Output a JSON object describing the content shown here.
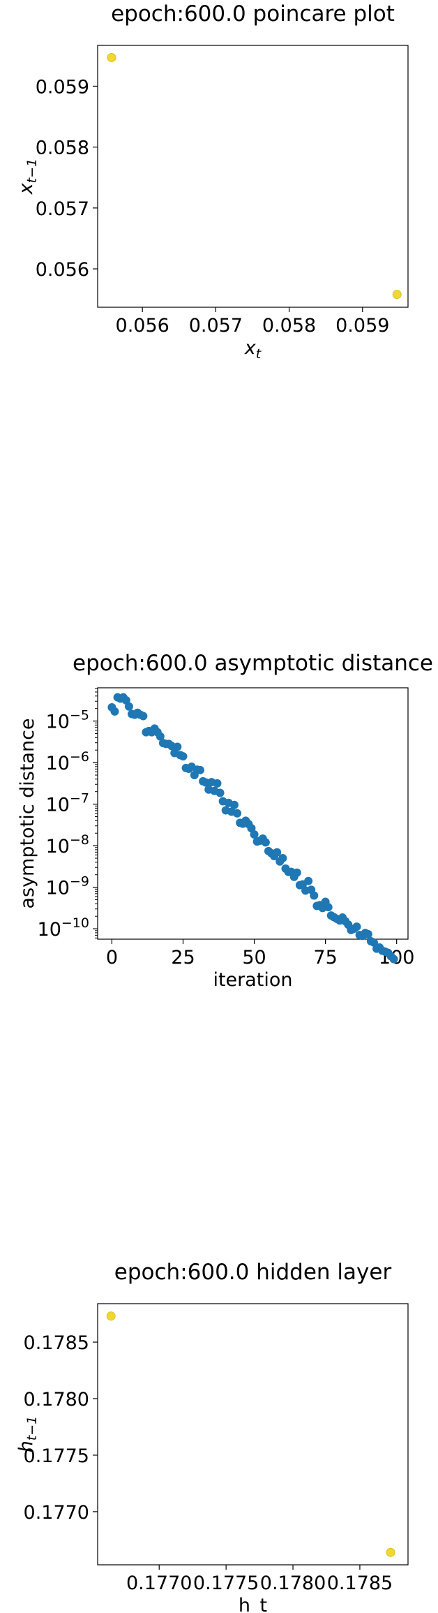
{
  "chart_data": [
    {
      "type": "scatter",
      "title": "epoch:600.0 poincare plot",
      "xlabel": "x",
      "xlabel_sub": "t",
      "ylabel": "x",
      "ylabel_sub": "t−1",
      "xlim": [
        0.05539,
        0.05962
      ],
      "ylim": [
        0.05537,
        0.05967
      ],
      "xticks": [
        0.056,
        0.057,
        0.058,
        0.059
      ],
      "yticks": [
        0.056,
        0.057,
        0.058,
        0.059
      ],
      "tick_labels_x": [
        "0.056",
        "0.057",
        "0.058",
        "0.059"
      ],
      "tick_labels_y": [
        "0.056",
        "0.057",
        "0.058",
        "0.059"
      ],
      "points": [
        {
          "x": 0.05558,
          "y": 0.05947
        },
        {
          "x": 0.05947,
          "y": 0.05558
        }
      ],
      "point_color": "#f0d832",
      "grid": false
    },
    {
      "type": "scatter",
      "title": "epoch:600.0 asymptotic distance",
      "xlabel": "iteration",
      "ylabel": "asymptotic distance",
      "y_scale": "log",
      "xlim": [
        -5,
        104
      ],
      "ylim_log10": [
        -10.25,
        -4.2
      ],
      "xticks": [
        0,
        25,
        50,
        75,
        100
      ],
      "tick_labels_x": [
        "0",
        "25",
        "50",
        "75",
        "100"
      ],
      "yticks_log10": [
        -10,
        -9,
        -8,
        -7,
        -6,
        -5
      ],
      "tick_labels_y_base": [
        "10",
        "10",
        "10",
        "10",
        "10",
        "10"
      ],
      "tick_labels_y_exp": [
        "−10",
        "−9",
        "−8",
        "−7",
        "−6",
        "−5"
      ],
      "x": [
        0,
        1,
        2,
        3,
        4,
        5,
        6,
        7,
        8,
        9,
        10,
        11,
        12,
        13,
        14,
        15,
        16,
        17,
        18,
        19,
        20,
        21,
        22,
        23,
        24,
        25,
        26,
        27,
        28,
        29,
        30,
        31,
        32,
        33,
        34,
        35,
        36,
        37,
        38,
        39,
        40,
        41,
        42,
        43,
        44,
        45,
        46,
        47,
        48,
        49,
        50,
        51,
        52,
        53,
        54,
        55,
        56,
        57,
        58,
        59,
        60,
        61,
        62,
        63,
        64,
        65,
        66,
        67,
        68,
        69,
        70,
        71,
        72,
        73,
        74,
        75,
        76,
        77,
        78,
        79,
        80,
        81,
        82,
        83,
        84,
        85,
        86,
        87,
        88,
        89,
        90,
        91,
        92,
        93,
        94,
        95,
        96,
        97,
        98,
        99
      ],
      "y_log10": [
        -4.67,
        -4.77,
        -4.43,
        -4.46,
        -4.43,
        -4.5,
        -4.65,
        -4.83,
        -4.85,
        -4.8,
        -4.85,
        -4.88,
        -5.27,
        -5.24,
        -5.27,
        -5.18,
        -5.27,
        -5.37,
        -5.53,
        -5.55,
        -5.55,
        -5.6,
        -5.77,
        -5.62,
        -5.82,
        -5.85,
        -6.13,
        -6.15,
        -6.1,
        -6.3,
        -6.17,
        -6.18,
        -6.45,
        -6.48,
        -6.65,
        -6.47,
        -6.68,
        -6.5,
        -6.73,
        -6.93,
        -7.15,
        -6.97,
        -7.18,
        -7.02,
        -7.22,
        -7.45,
        -7.47,
        -7.4,
        -7.48,
        -7.58,
        -7.73,
        -7.9,
        -7.88,
        -7.83,
        -7.92,
        -8.13,
        -8.18,
        -8.25,
        -8.16,
        -8.38,
        -8.3,
        -8.55,
        -8.63,
        -8.63,
        -8.75,
        -8.65,
        -8.95,
        -8.93,
        -9.08,
        -8.85,
        -9.06,
        -9.2,
        -9.45,
        -9.43,
        -9.5,
        -9.35,
        -9.48,
        -9.68,
        -9.72,
        -9.76,
        -9.8,
        -9.73,
        -9.82,
        -9.9,
        -10.03,
        -10.0,
        -9.95,
        -10.15,
        -10.17,
        -10.1,
        -10.13,
        -10.3,
        -10.33,
        -10.48,
        -10.45,
        -10.53,
        -10.55,
        -10.58,
        -10.66,
        -10.73
      ],
      "point_color": "#1f77b4",
      "grid": false
    },
    {
      "type": "scatter",
      "title": "epoch:600.0 hidden layer",
      "xlabel": "h_t",
      "ylabel": "h",
      "ylabel_sub": "t−1",
      "xlim": [
        0.17654,
        0.17886
      ],
      "ylim": [
        0.17653,
        0.17884
      ],
      "xticks": [
        0.177,
        0.1775,
        0.178,
        0.1785
      ],
      "yticks": [
        0.177,
        0.1775,
        0.178,
        0.1785
      ],
      "tick_labels_x": [
        "0.1770",
        "0.1775",
        "0.1780",
        "0.1785"
      ],
      "tick_labels_y": [
        "0.1770",
        "0.1775",
        "0.1780",
        "0.1785"
      ],
      "points": [
        {
          "x": 0.17664,
          "y": 0.17873
        },
        {
          "x": 0.17873,
          "y": 0.17664
        }
      ],
      "point_color": "#f0d832",
      "grid": false
    }
  ]
}
